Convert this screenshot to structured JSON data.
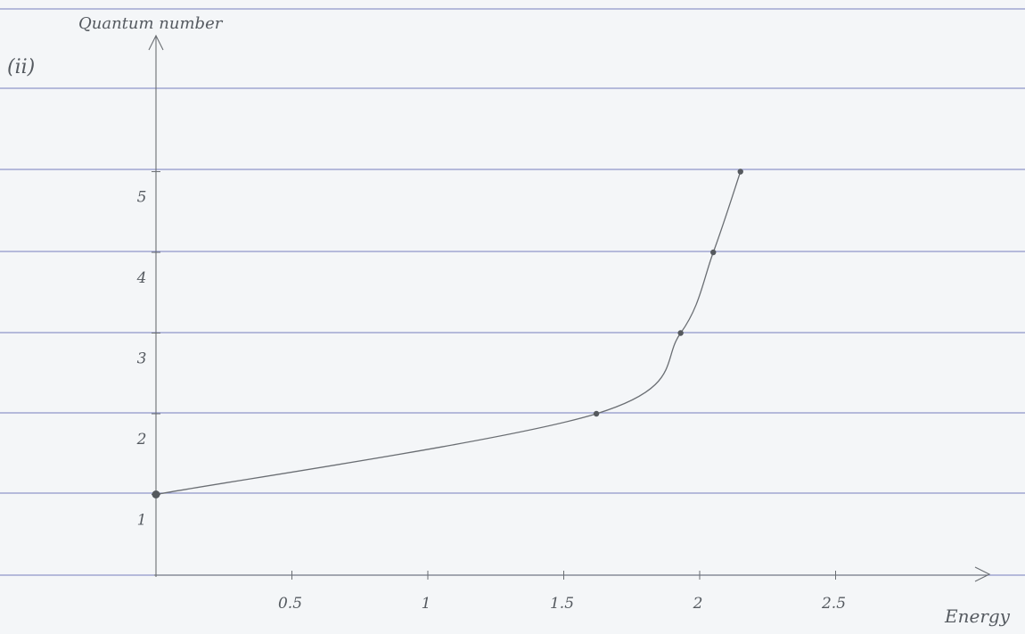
{
  "chart_data": {
    "type": "line",
    "title": "",
    "part_label": "(ii)",
    "xlabel": "Energy",
    "ylabel": "Quantum number",
    "xlim": [
      0,
      3.1
    ],
    "ylim": [
      0,
      5.9
    ],
    "x_ticks": [
      {
        "value": 0.5,
        "label": "0.5"
      },
      {
        "value": 1,
        "label": "1"
      },
      {
        "value": 1.5,
        "label": "1.5"
      },
      {
        "value": 2,
        "label": "2"
      },
      {
        "value": 2.5,
        "label": "2.5"
      }
    ],
    "y_ticks": [
      {
        "value": 1,
        "label": "1"
      },
      {
        "value": 2,
        "label": "2"
      },
      {
        "value": 3,
        "label": "3"
      },
      {
        "value": 4,
        "label": "4"
      },
      {
        "value": 5,
        "label": "5"
      }
    ],
    "grid": "horizontal ruled lines",
    "series": [
      {
        "points": [
          {
            "x": 0,
            "y": 1
          },
          {
            "x": 1.62,
            "y": 2
          },
          {
            "x": 1.93,
            "y": 3
          },
          {
            "x": 2.05,
            "y": 4
          },
          {
            "x": 2.15,
            "y": 5
          }
        ]
      }
    ]
  },
  "colors": {
    "paper": "#f4f6f8",
    "ruled_line": "#8f96c9",
    "pencil": "#6a6e73",
    "dot": "#55595e"
  }
}
